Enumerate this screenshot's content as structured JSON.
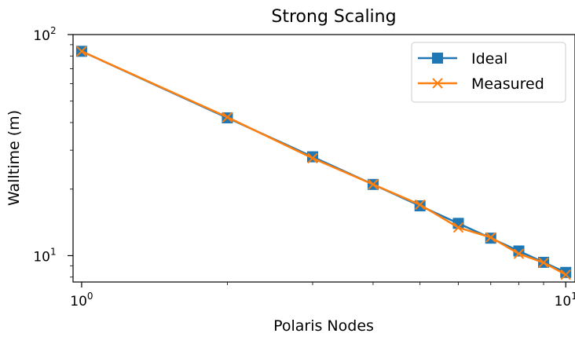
{
  "chart_data": {
    "type": "line",
    "title": "Strong Scaling",
    "xlabel": "Polaris Nodes",
    "ylabel": "Walltime (m)",
    "x_scale": "log",
    "y_scale": "log",
    "xlim": [
      0.96,
      10.45
    ],
    "ylim": [
      7.6,
      100
    ],
    "x_ticks": [
      {
        "value": 1,
        "base": "10",
        "exp": "0"
      },
      {
        "value": 10,
        "base": "10",
        "exp": "1"
      }
    ],
    "y_ticks": [
      {
        "value": 10,
        "base": "10",
        "exp": "1"
      },
      {
        "value": 100,
        "base": "10",
        "exp": "2"
      }
    ],
    "grid": false,
    "legend_position": "top-right",
    "x": [
      1,
      2,
      3,
      4,
      5,
      6,
      7,
      8,
      9,
      10
    ],
    "series": [
      {
        "name": "Ideal",
        "color": "#1f77b4",
        "marker": "square",
        "values": [
          84,
          42,
          28,
          21,
          16.8,
          14,
          12,
          10.5,
          9.33,
          8.4
        ]
      },
      {
        "name": "Measured",
        "color": "#ff7f0e",
        "marker": "x",
        "values": [
          84,
          42.3,
          27.6,
          21,
          17,
          13.4,
          12.1,
          10.2,
          9.3,
          8.2
        ]
      }
    ]
  }
}
